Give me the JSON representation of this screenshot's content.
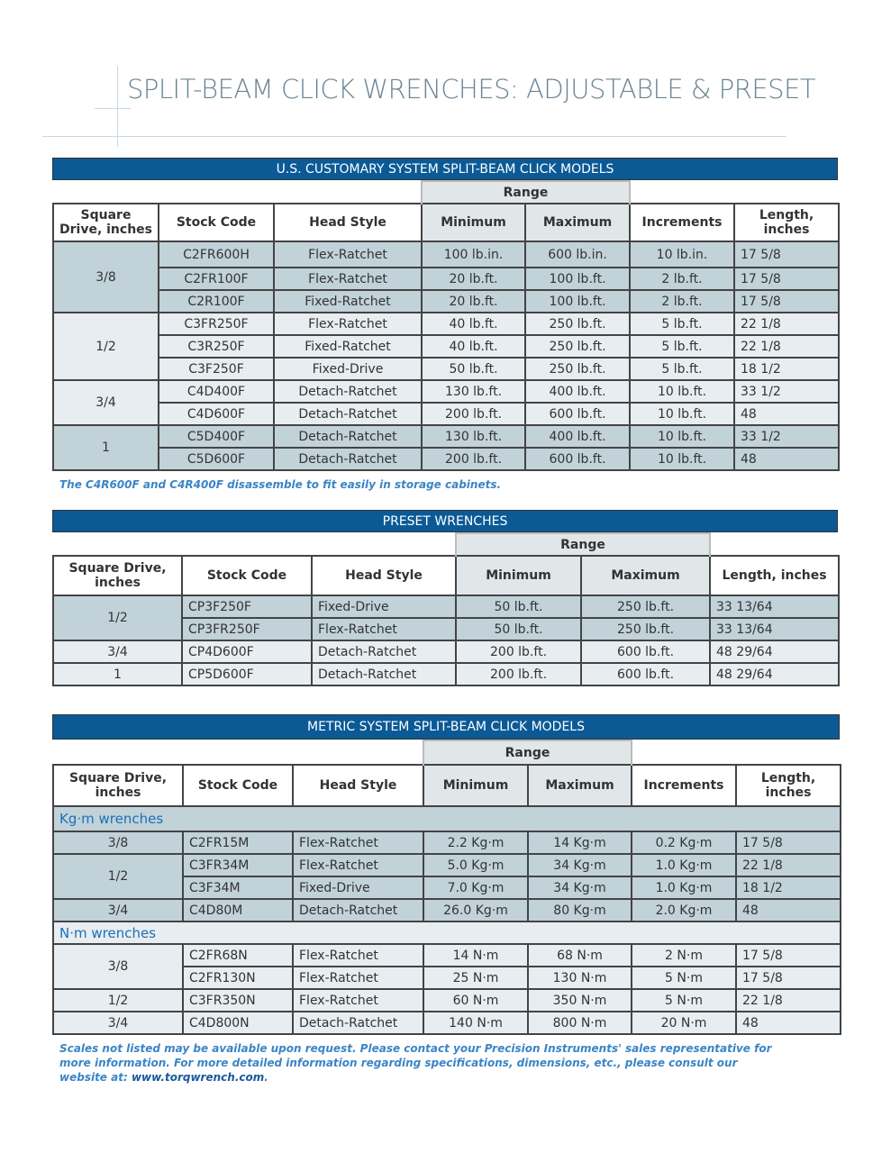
{
  "title": "SPLIT-BEAM CLICK WRENCHES: ADJUSTABLE & PRESET",
  "colors": {
    "header_bar": "#0b5a96",
    "dark_row": "#c1d2d9",
    "light_row": "#e7edf0",
    "note_text": "#3a85c6",
    "title": "#6b8494"
  },
  "tables": [
    {
      "heading": "U.S. CUSTOMARY SYSTEM SPLIT-BEAM CLICK MODELS",
      "range_label": "Range",
      "columns": [
        "Square Drive, inches",
        "Stock Code",
        "Head Style",
        "Minimum",
        "Maximum",
        "Increments",
        "Length, inches"
      ],
      "groups": [
        {
          "drive": "3/8",
          "shade": "dark",
          "rows": [
            [
              "C2FR600H",
              "Flex-Ratchet",
              "100 lb.in.",
              "600 lb.in.",
              "10 lb.in.",
              "17 5/8"
            ],
            [
              "C2FR100F",
              "Flex-Ratchet",
              "20 lb.ft.",
              "100 lb.ft.",
              "2 lb.ft.",
              "17 5/8"
            ],
            [
              "C2R100F",
              "Fixed-Ratchet",
              "20 lb.ft.",
              "100 lb.ft.",
              "2 lb.ft.",
              "17 5/8"
            ]
          ]
        },
        {
          "drive": "1/2",
          "shade": "light",
          "rows": [
            [
              "C3FR250F",
              "Flex-Ratchet",
              "40 lb.ft.",
              "250 lb.ft.",
              "5 lb.ft.",
              "22 1/8"
            ],
            [
              "C3R250F",
              "Fixed-Ratchet",
              "40 lb.ft.",
              "250 lb.ft.",
              "5 lb.ft.",
              "22 1/8"
            ],
            [
              "C3F250F",
              "Fixed-Drive",
              "50 lb.ft.",
              "250 lb.ft.",
              "5 lb.ft.",
              "18 1/2"
            ]
          ]
        },
        {
          "drive": "3/4",
          "shade": "light",
          "rows": [
            [
              "C4D400F",
              "Detach-Ratchet",
              "130 lb.ft.",
              "400 lb.ft.",
              "10 lb.ft.",
              "33 1/2"
            ],
            [
              "C4D600F",
              "Detach-Ratchet",
              "200 lb.ft.",
              "600 lb.ft.",
              "10 lb.ft.",
              "48"
            ]
          ]
        },
        {
          "drive": "1",
          "shade": "dark",
          "rows": [
            [
              "C5D400F",
              "Detach-Ratchet",
              "130 lb.ft.",
              "400 lb.ft.",
              "10 lb.ft.",
              "33 1/2"
            ],
            [
              "C5D600F",
              "Detach-Ratchet",
              "200 lb.ft.",
              "600 lb.ft.",
              "10 lb.ft.",
              "48"
            ]
          ]
        }
      ],
      "note": "The C4R600F and C4R400F disassemble to fit easily in storage cabinets."
    },
    {
      "heading": "PRESET WRENCHES",
      "range_label": "Range",
      "columns": [
        "Square Drive, inches",
        "Stock Code",
        "Head Style",
        "Minimum",
        "Maximum",
        "Length, inches"
      ],
      "groups": [
        {
          "drive": "1/2",
          "shade": "dark",
          "rows": [
            [
              "CP3F250F",
              "Fixed-Drive",
              "50 lb.ft.",
              "250 lb.ft.",
              "33 13/64"
            ],
            [
              "CP3FR250F",
              "Flex-Ratchet",
              "50 lb.ft.",
              "250 lb.ft.",
              "33 13/64"
            ]
          ]
        },
        {
          "drive": "3/4",
          "shade": "light",
          "rows": [
            [
              "CP4D600F",
              "Detach-Ratchet",
              "200 lb.ft.",
              "600 lb.ft.",
              "48 29/64"
            ]
          ]
        },
        {
          "drive": "1",
          "shade": "light",
          "rows": [
            [
              "CP5D600F",
              "Detach-Ratchet",
              "200 lb.ft.",
              "600 lb.ft.",
              "48 29/64"
            ]
          ]
        }
      ]
    },
    {
      "heading": "METRIC SYSTEM SPLIT-BEAM CLICK MODELS",
      "range_label": "Range",
      "columns": [
        "Square Drive, inches",
        "Stock Code",
        "Head Style",
        "Minimum",
        "Maximum",
        "Increments",
        "Length, inches"
      ],
      "sections": [
        {
          "label": "Kg·m wrenches",
          "shade": "dark",
          "groups": [
            {
              "drive": "3/8",
              "rows": [
                [
                  "C2FR15M",
                  "Flex-Ratchet",
                  "2.2 Kg·m",
                  "14 Kg·m",
                  "0.2 Kg·m",
                  "17 5/8"
                ]
              ]
            },
            {
              "drive": "1/2",
              "rows": [
                [
                  "C3FR34M",
                  "Flex-Ratchet",
                  "5.0 Kg·m",
                  "34 Kg·m",
                  "1.0 Kg·m",
                  "22 1/8"
                ],
                [
                  "C3F34M",
                  "Fixed-Drive",
                  "7.0 Kg·m",
                  "34 Kg·m",
                  "1.0 Kg·m",
                  "18 1/2"
                ]
              ]
            },
            {
              "drive": "3/4",
              "rows": [
                [
                  "C4D80M",
                  "Detach-Ratchet",
                  "26.0 Kg·m",
                  "80 Kg·m",
                  "2.0 Kg·m",
                  "48"
                ]
              ]
            }
          ]
        },
        {
          "label": "N·m wrenches",
          "shade": "light",
          "groups": [
            {
              "drive": "3/8",
              "rows": [
                [
                  "C2FR68N",
                  "Flex-Ratchet",
                  "14 N·m",
                  "68 N·m",
                  "2 N·m",
                  "17 5/8"
                ],
                [
                  "C2FR130N",
                  "Flex-Ratchet",
                  "25 N·m",
                  "130 N·m",
                  "5 N·m",
                  "17 5/8"
                ]
              ]
            },
            {
              "drive": "1/2",
              "rows": [
                [
                  "C3FR350N",
                  "Flex-Ratchet",
                  "60 N·m",
                  "350 N·m",
                  "5 N·m",
                  "22 1/8"
                ]
              ]
            },
            {
              "drive": "3/4",
              "rows": [
                [
                  "C4D800N",
                  "Detach-Ratchet",
                  "140 N·m",
                  "800 N·m",
                  "20 N·m",
                  "48"
                ]
              ]
            }
          ]
        }
      ],
      "note": {
        "text": "Scales not listed may be available upon request. Please contact your Precision Instruments' sales representative for more information. For more detailed information regarding specifications, dimensions, etc., please consult our website at: ",
        "link": "www.torqwrench.com",
        "end": "."
      }
    }
  ]
}
